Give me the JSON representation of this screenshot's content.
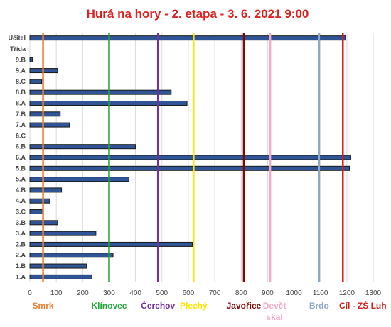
{
  "chart_data": {
    "type": "bar",
    "orientation": "horizontal",
    "title": "Hurá na hory - 2. etapa - 3. 6. 2021 9:00",
    "title_color": "#e02020",
    "categories": [
      "Učitel",
      "Třída",
      "9.B",
      "9.A",
      "8.C",
      "8.B",
      "8.A",
      "7.B",
      "7.A",
      "6.C",
      "6.B",
      "6.A",
      "5.B",
      "5.A",
      "4.B",
      "4.A",
      "3.C",
      "3.B",
      "3.A",
      "2.B",
      "2.A",
      "1.B",
      "1.A"
    ],
    "values": [
      1195,
      null,
      10,
      105,
      45,
      535,
      595,
      115,
      150,
      0,
      400,
      1215,
      1210,
      375,
      120,
      75,
      50,
      105,
      250,
      615,
      315,
      215,
      235
    ],
    "bar_color": "#2f5597",
    "xlim": [
      0,
      1300
    ],
    "xticks": [
      0,
      100,
      200,
      300,
      400,
      500,
      600,
      700,
      800,
      900,
      1000,
      1100,
      1200,
      1300
    ],
    "grid": true,
    "markers": [
      {
        "label": "Smrk",
        "value": 50,
        "color": "#ed7d31"
      },
      {
        "label": "Klínovec",
        "value": 300,
        "color": "#22a33a"
      },
      {
        "label": "Čerchov",
        "value": 485,
        "color": "#7030a0"
      },
      {
        "label": "Plechý",
        "value": 620,
        "color": "#ffe500"
      },
      {
        "label": "Javořice",
        "value": 810,
        "color": "#7b0a0a"
      },
      {
        "label": "Devět skal",
        "value": 910,
        "color": "#f4a9c8"
      },
      {
        "label": "Brdo",
        "value": 1095,
        "color": "#8ea9c8"
      },
      {
        "label": "Cíl - ZŠ Luh",
        "value": 1185,
        "color": "#d41e1e"
      }
    ]
  }
}
